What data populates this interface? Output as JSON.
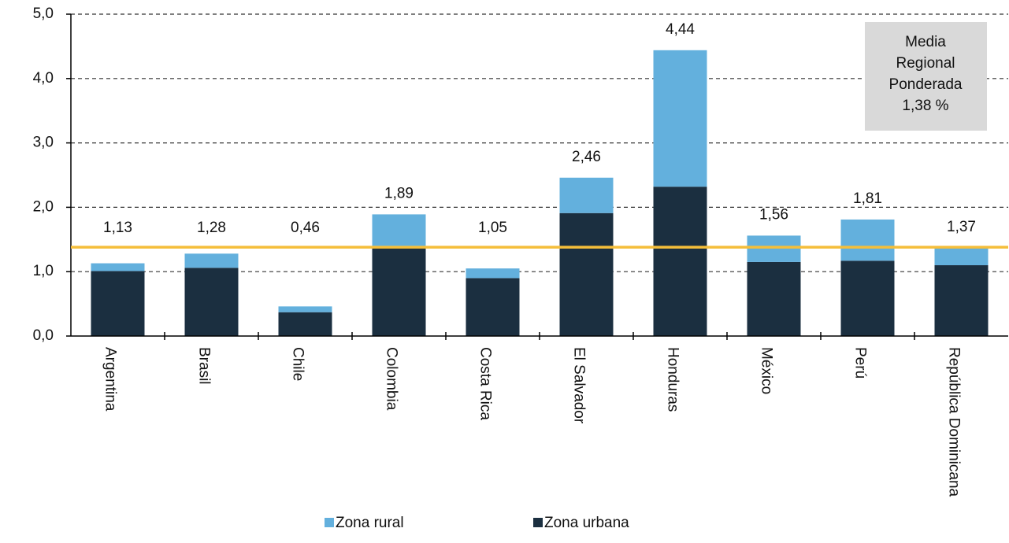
{
  "chart_data": {
    "type": "stacked_bar",
    "categories": [
      "Argentina",
      "Brasil",
      "Chile",
      "Colombia",
      "Costa Rica",
      "El Salvador",
      "Honduras",
      "México",
      "Perú",
      "República Dominicana"
    ],
    "series": [
      {
        "name": "Zona urbana",
        "color": "#1b2f40",
        "values": [
          1.01,
          1.06,
          0.37,
          1.4,
          0.9,
          1.91,
          2.32,
          1.15,
          1.17,
          1.1
        ]
      },
      {
        "name": "Zona rural",
        "color": "#63b0dd",
        "values": [
          0.12,
          0.22,
          0.09,
          0.49,
          0.15,
          0.55,
          2.12,
          0.41,
          0.64,
          0.27
        ]
      }
    ],
    "totals": [
      1.13,
      1.28,
      0.46,
      1.89,
      1.05,
      2.46,
      4.44,
      1.56,
      1.81,
      1.37
    ],
    "total_labels": [
      "1,13",
      "1,28",
      "0,46",
      "1,89",
      "1,05",
      "2,46",
      "4,44",
      "1,56",
      "1,81",
      "1,37"
    ],
    "ylim": [
      0,
      5
    ],
    "yticks": [
      {
        "value": 0,
        "label": "0,0"
      },
      {
        "value": 1,
        "label": "1,0"
      },
      {
        "value": 2,
        "label": "2,0"
      },
      {
        "value": 3,
        "label": "3,0"
      },
      {
        "value": 4,
        "label": "4,0"
      },
      {
        "value": 5,
        "label": "5,0"
      }
    ],
    "grid": true,
    "reference_line": {
      "value": 1.38,
      "color": "#f5be3a"
    },
    "annotation": [
      "Media",
      "Regional",
      "Ponderada",
      "1,38 %"
    ],
    "legend_order": [
      "Zona rural",
      "Zona urbana"
    ]
  }
}
